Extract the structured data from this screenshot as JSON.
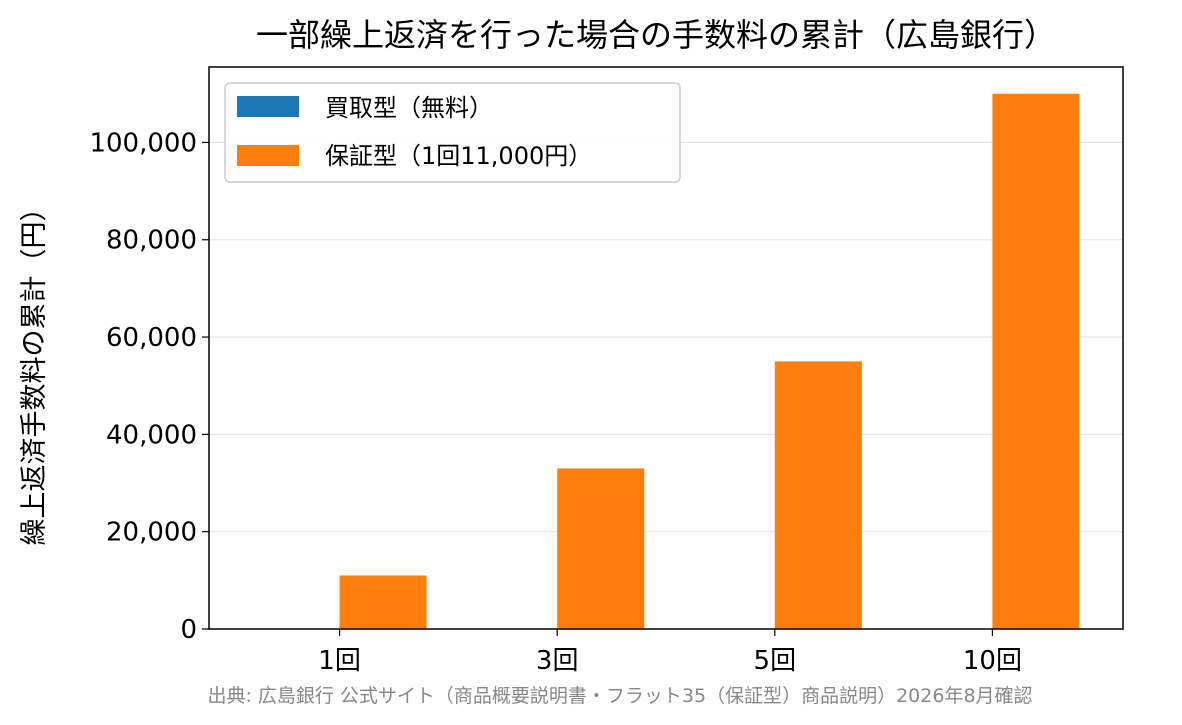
{
  "chart_data": {
    "type": "bar",
    "title": "一部繰上返済を行った場合の手数料の累計（広島銀行）",
    "xlabel": "",
    "ylabel": "繰上返済手数料の累計（円）",
    "categories": [
      "1回",
      "3回",
      "5回",
      "10回"
    ],
    "series": [
      {
        "name": "買取型（無料）",
        "color": "#1f77b4",
        "values": [
          0,
          0,
          0,
          0
        ]
      },
      {
        "name": "保証型（1回11,000円）",
        "color": "#ff7f0e",
        "values": [
          11000,
          33000,
          55000,
          110000
        ]
      }
    ],
    "ylim": [
      0,
      115500
    ],
    "yticks": [
      0,
      20000,
      40000,
      60000,
      80000,
      100000
    ],
    "ytick_labels": [
      "0",
      "20,000",
      "40,000",
      "60,000",
      "80,000",
      "100,000"
    ],
    "grid": "horizontal",
    "legend_position": "top-left"
  },
  "source_note": "出典: 広島銀行 公式サイト（商品概要説明書・フラット35（保証型）商品説明）2026年8月確認"
}
